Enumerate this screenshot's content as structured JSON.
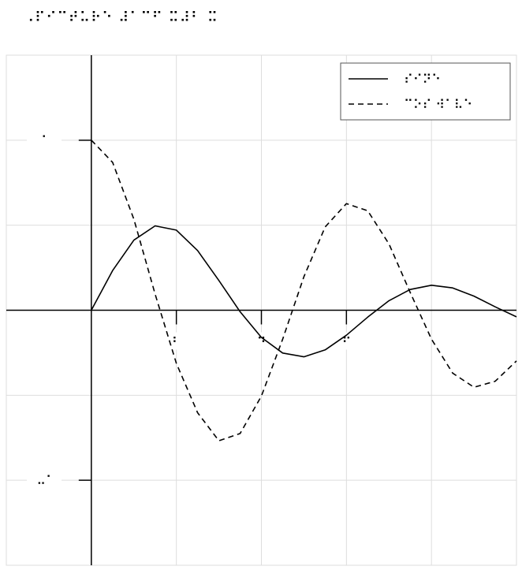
{
  "title": "⠠⠏⠊⠉⠞⠥⠗⠑ ⠼⠁⠉⠋ ⠭⠼⠃ ⠭",
  "chart_data": {
    "type": "line",
    "title": "⠠⠏⠊⠉⠞⠥⠗⠑ ⠼⠁⠉⠋ ⠭⠼⠃ ⠭",
    "xlabel": "",
    "ylabel": "",
    "xlim": [
      -1,
      5
    ],
    "ylim": [
      -1.5,
      1.5
    ],
    "grid": true,
    "legend_position": "top-right",
    "x_ticks": [
      {
        "value": 2,
        "label": "⠃"
      },
      {
        "value": 4,
        "label": "⠙"
      },
      {
        "value": 6,
        "label": "⠋"
      }
    ],
    "y_ticks": [
      {
        "value": 1,
        "label": "⠁"
      },
      {
        "value": -1,
        "label": "⠤⠁"
      }
    ],
    "series": [
      {
        "name": "⠎⠊⠝⠑",
        "style": "solid",
        "x": [
          0,
          0.25,
          0.5,
          0.75,
          1.0,
          1.25,
          1.5,
          1.75,
          2.0,
          2.25,
          2.5,
          2.75,
          3.0,
          3.25,
          3.5,
          3.75,
          4.0,
          4.25,
          4.5,
          4.75,
          5.0
        ],
        "y": [
          0.0,
          0.233,
          0.412,
          0.496,
          0.471,
          0.351,
          0.175,
          -0.009,
          -0.16,
          -0.252,
          -0.274,
          -0.233,
          -0.147,
          -0.041,
          0.056,
          0.122,
          0.147,
          0.131,
          0.083,
          0.02,
          -0.039
        ]
      },
      {
        "name": "⠉⠕⠎ ⠺⠁⠧⠑",
        "style": "dashed",
        "x": [
          0,
          0.25,
          0.5,
          0.75,
          1.0,
          1.25,
          1.5,
          1.75,
          2.0,
          2.25,
          2.5,
          2.75,
          3.0,
          3.25,
          3.5,
          3.75,
          4.0,
          4.25,
          4.5,
          4.75,
          5.0
        ],
        "y": [
          1.0,
          0.87,
          0.535,
          0.095,
          -0.313,
          -0.603,
          -0.768,
          -0.725,
          -0.505,
          -0.17,
          0.197,
          0.49,
          0.627,
          0.585,
          0.39,
          0.105,
          -0.17,
          -0.37,
          -0.453,
          -0.418,
          -0.298
        ]
      }
    ]
  }
}
